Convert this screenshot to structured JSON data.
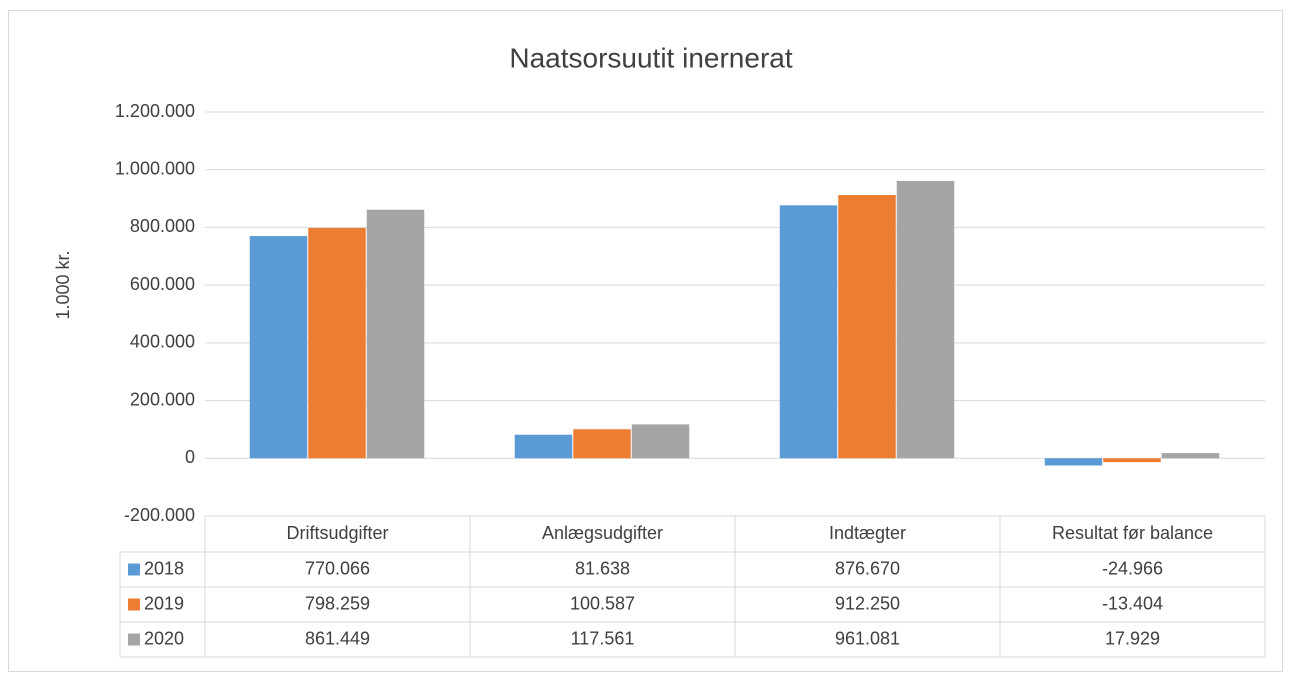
{
  "chart_data": {
    "type": "bar",
    "title": "Naatsorsuutit inernerat",
    "y_label": "1.000 kr.",
    "categories": [
      "Driftsudgifter",
      "Anlægsudgifter",
      "Indtægter",
      "Resultat før balance"
    ],
    "series": [
      {
        "name": "2018",
        "color": "#5b9bd5",
        "values": [
          770066,
          81638,
          876670,
          -24966
        ],
        "value_labels": [
          "770.066",
          "81.638",
          "876.670",
          "-24.966"
        ]
      },
      {
        "name": "2019",
        "color": "#ed7d31",
        "values": [
          798259,
          100587,
          912250,
          -13404
        ],
        "value_labels": [
          "798.259",
          "100.587",
          "912.250",
          "-13.404"
        ]
      },
      {
        "name": "2020",
        "color": "#a5a5a5",
        "values": [
          861449,
          117561,
          961081,
          17929
        ],
        "value_labels": [
          "861.449",
          "117.561",
          "961.081",
          "17.929"
        ]
      }
    ],
    "ylim": [
      -200000,
      1200000
    ],
    "yticks": [
      {
        "value": -200000,
        "label": "-200.000"
      },
      0,
      {
        "value": 200000,
        "label": "200.000"
      },
      {
        "value": 400000,
        "label": "400.000"
      },
      {
        "value": 600000,
        "label": "600.000"
      },
      {
        "value": 800000,
        "label": "800.000"
      },
      {
        "value": 1000000,
        "label": "1.000.000"
      },
      {
        "value": 1200000,
        "label": "1.200.000"
      }
    ],
    "grid": true
  }
}
